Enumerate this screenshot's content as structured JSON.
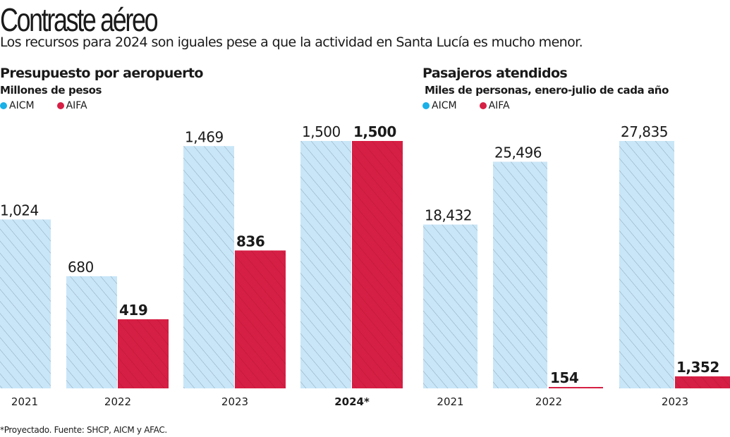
{
  "title": "Contraste aéreo",
  "subtitle": "Los recursos para 2024 son iguales pese a que la actividad en Santa Lucía es mucho menor.",
  "footnote": "*Proyectado. Fuente: SHCP, AICM y AFAC.",
  "colors": {
    "AICM": "#c9e6f8",
    "AICM_hatch": "#8aa6b8",
    "AIFA": "#d61f44",
    "AIFA_hatch": "#b51838",
    "AICM_dot": "#1ab0e8",
    "AIFA_dot": "#d61f44"
  },
  "chart_data": [
    {
      "type": "bar",
      "title": "Presupuesto por aeropuerto",
      "subtitle": "Millones de pesos",
      "legend": [
        "AICM",
        "AIFA"
      ],
      "legend_placement": "top-left",
      "grid": false,
      "ylim": [
        0,
        1500
      ],
      "categories": [
        "2021",
        "2022",
        "2023",
        "2024*"
      ],
      "series": [
        {
          "name": "AICM",
          "values": [
            1024,
            680,
            1469,
            1500
          ],
          "labels": [
            "1,024",
            "680",
            "1,469",
            "1,500"
          ]
        },
        {
          "name": "AIFA",
          "values": [
            null,
            419,
            836,
            1500
          ],
          "labels": [
            null,
            "419",
            "836",
            "1,500"
          ]
        }
      ]
    },
    {
      "type": "bar",
      "title": "Pasajeros atendidos",
      "subtitle": "Miles de personas, enero-julio de cada año",
      "legend": [
        "AICM",
        "AIFA"
      ],
      "legend_placement": "top-left",
      "grid": false,
      "ylim": [
        0,
        27835
      ],
      "categories": [
        "2021",
        "2022",
        "2023"
      ],
      "series": [
        {
          "name": "AICM",
          "values": [
            18432,
            25496,
            27835
          ],
          "labels": [
            "18,432",
            "25,496",
            "27,835"
          ]
        },
        {
          "name": "AIFA",
          "values": [
            null,
            154,
            1352
          ],
          "labels": [
            null,
            "154",
            "1,352"
          ]
        }
      ]
    }
  ]
}
